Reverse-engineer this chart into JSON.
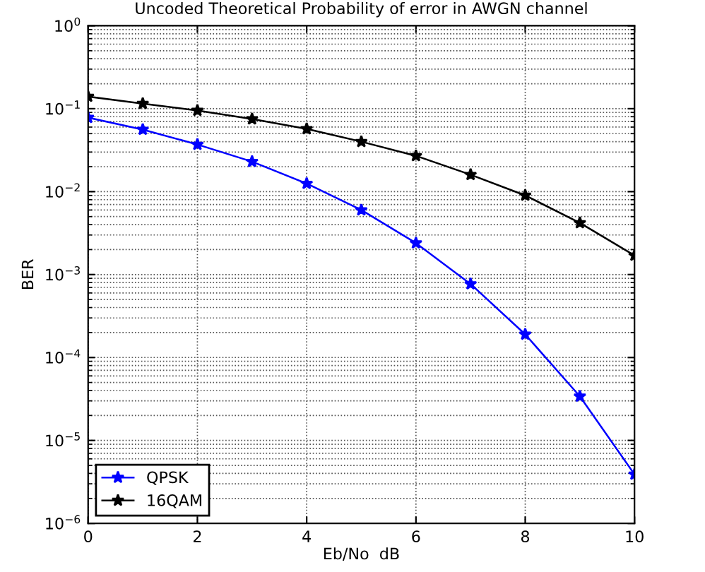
{
  "chart_data": {
    "type": "line",
    "title": "Uncoded Theoretical Probability of error in AWGN channel",
    "xlabel": "Eb/No  dB",
    "ylabel": "BER",
    "x": [
      0,
      1,
      2,
      3,
      4,
      5,
      6,
      7,
      8,
      9,
      10
    ],
    "series": [
      {
        "name": "QPSK",
        "color": "#0000ff",
        "values": [
          0.078,
          0.056,
          0.037,
          0.023,
          0.0125,
          0.006,
          0.0024,
          0.00077,
          0.00019,
          3.4e-05,
          3.9e-06
        ]
      },
      {
        "name": "16QAM",
        "color": "#000000",
        "values": [
          0.14,
          0.115,
          0.095,
          0.075,
          0.057,
          0.04,
          0.027,
          0.016,
          0.009,
          0.0042,
          0.0017
        ]
      }
    ],
    "log": "y",
    "xlim": [
      0,
      10
    ],
    "xticks": [
      0,
      2,
      4,
      6,
      8,
      10
    ],
    "ylim": [
      1e-06,
      1
    ],
    "yticks": [
      {
        "value": 1e-06,
        "label": "10$^{−6}$"
      },
      {
        "value": 1e-05,
        "label": "10$^{−5}$"
      },
      {
        "value": 0.0001,
        "label": "10$^{−4}$"
      },
      {
        "value": 0.001,
        "label": "10$^{−3}$"
      },
      {
        "value": 0.01,
        "label": "10$^{−2}$"
      },
      {
        "value": 0.1,
        "label": "10$^{−1}$"
      },
      {
        "value": 1,
        "label": "10$^{0}$"
      }
    ],
    "grid": true,
    "legend": "bottom left",
    "marker": "star",
    "line_style": "solid"
  }
}
